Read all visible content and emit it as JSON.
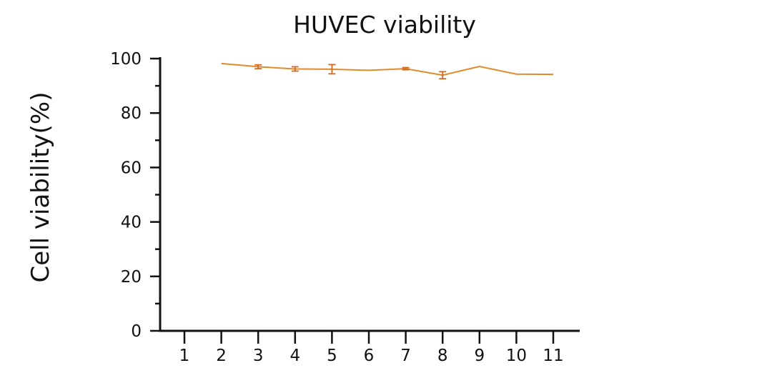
{
  "chart_data": {
    "type": "line",
    "title": "HUVEC viability",
    "xlabel": "",
    "ylabel": "Cell viability(%)",
    "categories": [
      "1",
      "2",
      "3",
      "4",
      "5",
      "6",
      "7",
      "8",
      "9",
      "10",
      "11"
    ],
    "ylim": [
      0,
      100
    ],
    "yticks": [
      "0",
      "20",
      "40",
      "60",
      "80",
      "100"
    ],
    "grid": false,
    "series": [
      {
        "name": "",
        "color": "#e08a2c",
        "errorbar_color": "#cf6a25",
        "points": [
          {
            "x": "2",
            "y": 98.2,
            "err": 0
          },
          {
            "x": "3",
            "y": 97.0,
            "err": 0.7
          },
          {
            "x": "4",
            "y": 96.2,
            "err": 0.8
          },
          {
            "x": "5",
            "y": 96.1,
            "err": 1.7
          },
          {
            "x": "6",
            "y": 95.7,
            "err": 0
          },
          {
            "x": "7",
            "y": 96.3,
            "err": 0.4
          },
          {
            "x": "8",
            "y": 93.9,
            "err": 1.3
          },
          {
            "x": "9",
            "y": 97.1,
            "err": 0
          },
          {
            "x": "10",
            "y": 94.3,
            "err": 0
          },
          {
            "x": "11",
            "y": 94.2,
            "err": 0
          }
        ]
      }
    ]
  }
}
